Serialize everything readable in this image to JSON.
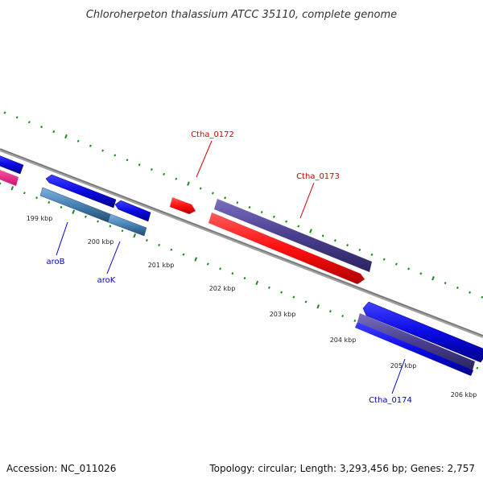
{
  "header": {
    "title": "Chloroherpeton thalassium ATCC 35110, complete genome"
  },
  "footer": {
    "accession": "Accession: NC_011026",
    "topology": "Topology: circular; Length: 3,293,456 bp; Genes: 2,757"
  },
  "map": {
    "colors": {
      "backbone": "#8a8a8a",
      "tick": "#1a8a1a",
      "forward_gene": "#0a0ae6",
      "reverse_gene": "#4682b4",
      "pseudo_gene": "#ff1010",
      "hypothetical": "#4a3f8f",
      "rna": "#ff1493",
      "label_blue": "#0000cc",
      "label_red": "#cc0000"
    },
    "scale_labels": [
      "199 kbp",
      "200 kbp",
      "201 kbp",
      "202 kbp",
      "203 kbp",
      "204 kbp",
      "205 kbp",
      "206 kbp"
    ],
    "gene_labels": [
      {
        "text": "aroB",
        "color": "label_blue"
      },
      {
        "text": "aroK",
        "color": "label_blue"
      },
      {
        "text": "Ctha_0172",
        "color": "label_red"
      },
      {
        "text": "Ctha_0173",
        "color": "label_red"
      },
      {
        "text": "Ctha_0174",
        "color": "label_blue"
      }
    ]
  }
}
